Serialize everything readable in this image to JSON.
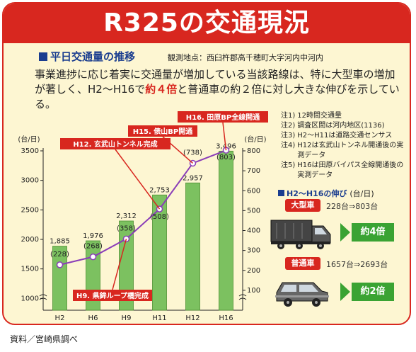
{
  "header": {
    "title": "R325の交通現況",
    "section_title": "平日交通量の推移",
    "obs_point": "観測地点：西臼杵郡高千穂町大字河内中河内"
  },
  "description": {
    "part1": "事業進捗に応じ着実に交通量が増加している当該路線は、特に大型車の増加が著しく、H2～H16で",
    "highlight": "約４倍",
    "part2": "と普通車の約２倍に対し大きな伸びを示している。"
  },
  "chart_data": {
    "type": "bar",
    "categories": [
      "H2",
      "H6",
      "H9",
      "H11",
      "H12",
      "H16"
    ],
    "y_left_unit": "(台/日)",
    "y_right_unit": "(台/日)",
    "y_left_ticks": [
      "1000",
      "1500",
      "2000",
      "2500",
      "3000",
      "3500"
    ],
    "y_right_ticks": [
      "100",
      "200",
      "300",
      "400",
      "500",
      "600",
      "700",
      "800"
    ],
    "ylim_left": [
      800,
      3500
    ],
    "ylim_right": [
      0,
      800
    ],
    "series": [
      {
        "kind": "bar",
        "axis": "left",
        "values": [
          1885,
          1976,
          2312,
          2753,
          2957,
          3496
        ],
        "labels": [
          "1,885",
          "1,976",
          "2,312",
          "2,753",
          "2,957",
          "3,496"
        ],
        "color": "#7cc160"
      },
      {
        "kind": "line",
        "axis": "right",
        "values": [
          228,
          268,
          358,
          508,
          738,
          803
        ],
        "labels": [
          "(228)",
          "(268)",
          "(358)",
          "(508)",
          "(738)",
          "(803)"
        ],
        "color": "#8a3db8"
      }
    ],
    "annotations": [
      "H9. 県鉾ループ橋完成",
      "H12. 玄武山トンネル完成",
      "H15. 俵山BP開通",
      "H16. 田原BP全線開通"
    ]
  },
  "notes": [
    {
      "key": "注1)",
      "text": "12時間交通量"
    },
    {
      "key": "注2)",
      "text": "調査区間は河内地区(1136)"
    },
    {
      "key": "注3)",
      "text": "H2～H11は道路交通センサス"
    },
    {
      "key": "注4)",
      "text": "H12は玄武山トンネル開通後の実測データ"
    },
    {
      "key": "注5)",
      "text": "H16は田原バイパス全線開通後の実測データ"
    }
  ],
  "growth": {
    "title": "H2～H16の伸び",
    "unit": "(台/日)",
    "large": {
      "label": "大型車",
      "value": "228台⇒803台",
      "ratio": "約4倍"
    },
    "normal": {
      "label": "普通車",
      "value": "1657台⇒2693台",
      "ratio": "約2倍"
    }
  },
  "colors": {
    "accent": "#d8271f",
    "background": "#fdf6d2",
    "bar": "#7cc160",
    "line": "#8a3db8",
    "heading": "#1a3d8f",
    "ratio": "#3aa333"
  },
  "footer": {
    "source": "資料／宮崎県調べ"
  }
}
